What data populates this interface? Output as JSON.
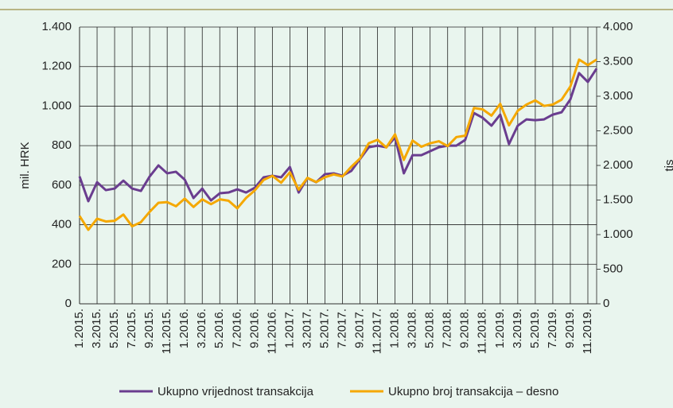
{
  "chart_data": {
    "type": "line",
    "y_label": "mil. HRK",
    "y2_label": "tis",
    "categories": [
      "1.2015.",
      null,
      "3.2015.",
      null,
      "5.2015.",
      null,
      "7.2015.",
      null,
      "9.2015.",
      null,
      "11.2015.",
      null,
      "1.2016.",
      null,
      "3.2016.",
      null,
      "5.2016.",
      null,
      "7.2016.",
      null,
      "9.2016.",
      null,
      "11.2016.",
      null,
      "1.2017.",
      null,
      "3.2017.",
      null,
      "5.2017.",
      null,
      "7.2017.",
      null,
      "9.2017.",
      null,
      "11.2017.",
      null,
      "1.2018.",
      null,
      "3.2018.",
      null,
      "5.2018.",
      null,
      "7.2018.",
      null,
      "9.2018.",
      null,
      "11.2018.",
      null,
      "1.2019.",
      null,
      "3.2019.",
      null,
      "5.2019.",
      null,
      "7.2019.",
      null,
      "9.2019.",
      null,
      "11.2019.",
      null
    ],
    "series": [
      {
        "name": "Ukupno vrijednost transakcija",
        "color": "#6a3d8f",
        "axis": "y",
        "values": [
          644,
          519,
          615,
          575,
          583,
          623,
          583,
          571,
          644,
          700,
          660,
          668,
          628,
          535,
          583,
          523,
          559,
          563,
          579,
          563,
          587,
          640,
          648,
          640,
          692,
          563,
          636,
          615,
          656,
          660,
          648,
          672,
          732,
          792,
          800,
          792,
          841,
          660,
          752,
          752,
          772,
          792,
          800,
          800,
          829,
          965,
          941,
          901,
          957,
          808,
          901,
          933,
          929,
          933,
          957,
          969,
          1034,
          1167,
          1122,
          1190
        ]
      },
      {
        "name": "Ukupno broj transakcija – desno",
        "color": "#f5a800",
        "axis": "y2",
        "values": [
          1270,
          1070,
          1230,
          1190,
          1200,
          1290,
          1120,
          1180,
          1330,
          1460,
          1470,
          1410,
          1520,
          1400,
          1510,
          1440,
          1510,
          1490,
          1380,
          1530,
          1640,
          1790,
          1850,
          1750,
          1900,
          1650,
          1820,
          1760,
          1830,
          1870,
          1840,
          1980,
          2100,
          2320,
          2370,
          2260,
          2450,
          2080,
          2360,
          2270,
          2320,
          2350,
          2280,
          2410,
          2430,
          2830,
          2810,
          2720,
          2890,
          2580,
          2790,
          2880,
          2940,
          2860,
          2880,
          2950,
          3140,
          3530,
          3450,
          3530
        ]
      }
    ],
    "ylim": [
      0,
      1400
    ],
    "yticks": [
      0,
      200,
      400,
      600,
      800,
      {
        "value": 1000,
        "label": "1.000"
      },
      {
        "value": 1200,
        "label": "1.200"
      },
      {
        "value": 1400,
        "label": "1.400"
      }
    ],
    "y2lim": [
      0,
      4000
    ],
    "y2ticks": [
      0,
      500,
      {
        "value": 1000,
        "label": "1.000"
      },
      {
        "value": 1500,
        "label": "1.500"
      },
      {
        "value": 2000,
        "label": "2.000"
      },
      {
        "value": 2500,
        "label": "2.500"
      },
      {
        "value": 3000,
        "label": "3.000"
      },
      {
        "value": 3500,
        "label": "3.500"
      },
      {
        "value": 4000,
        "label": "4.000"
      }
    ],
    "grid": true,
    "legend": "bottom"
  }
}
